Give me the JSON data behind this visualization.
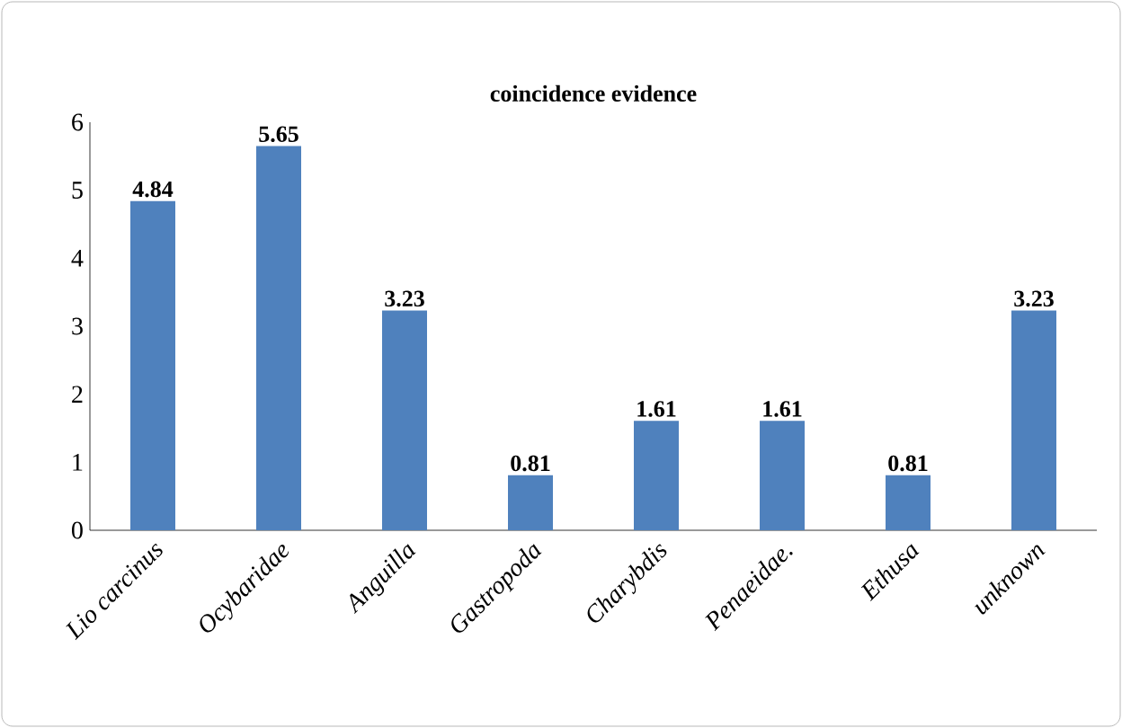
{
  "chart_data": {
    "type": "bar",
    "title": "coincidence evidence",
    "categories": [
      "Lio carcinus",
      "Ocybaridae",
      "Anguilla",
      "Gastropoda",
      "Charybdis",
      "Penaeidae.",
      "Ethusa",
      "unknown"
    ],
    "values": [
      4.84,
      5.65,
      3.23,
      0.81,
      1.61,
      1.61,
      0.81,
      3.23
    ],
    "color": "#4f81bd",
    "ylim": [
      0,
      6
    ],
    "yticks": [
      0,
      1,
      2,
      3,
      4,
      5,
      6
    ],
    "data_labels": true
  }
}
